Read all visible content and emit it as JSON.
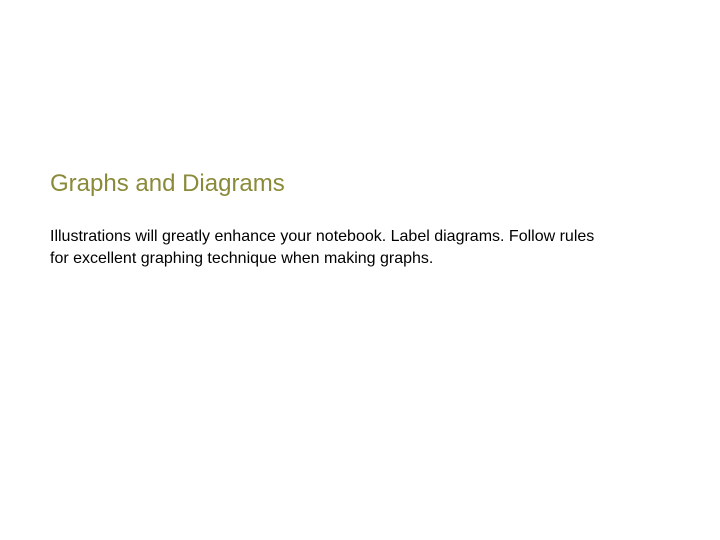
{
  "slide": {
    "heading": "Graphs and Diagrams",
    "body": "Illustrations will greatly enhance your notebook. Label diagrams. Follow rules for excellent graphing technique when making graphs.",
    "heading_color": "#8a8a3a",
    "heading_fontsize": 24,
    "body_color": "#000000",
    "body_fontsize": 16,
    "background_color": "#ffffff"
  }
}
